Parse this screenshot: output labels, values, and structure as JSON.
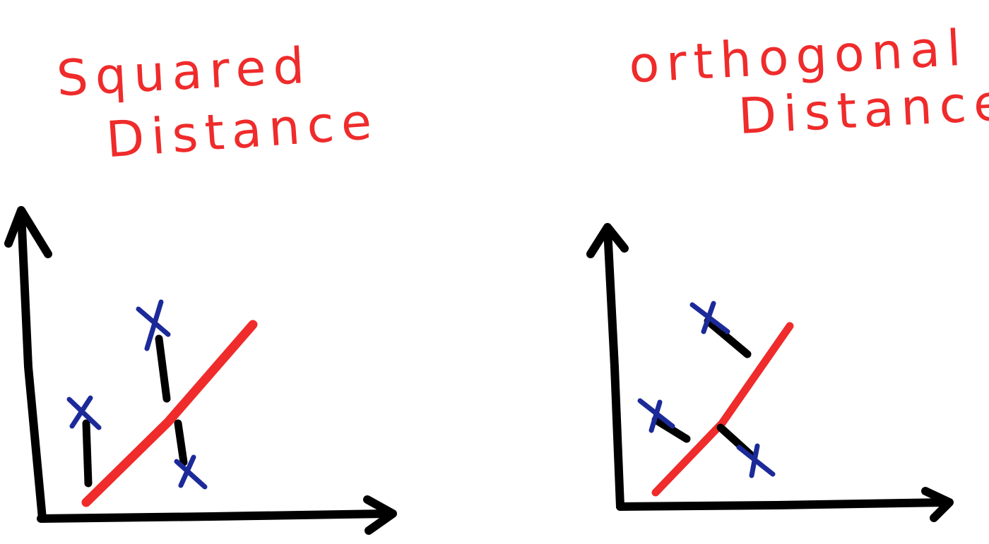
{
  "left": {
    "title_line_1": "Squared",
    "title_line_2": "Distance"
  },
  "right": {
    "title_line_1": "orthogonal",
    "title_line_2": "Distance"
  },
  "colors": {
    "title": "#ef2b2b",
    "axes": "#000000",
    "fit_line": "#ef2b2b",
    "points": "#1c2a99",
    "residuals": "#000000"
  }
}
